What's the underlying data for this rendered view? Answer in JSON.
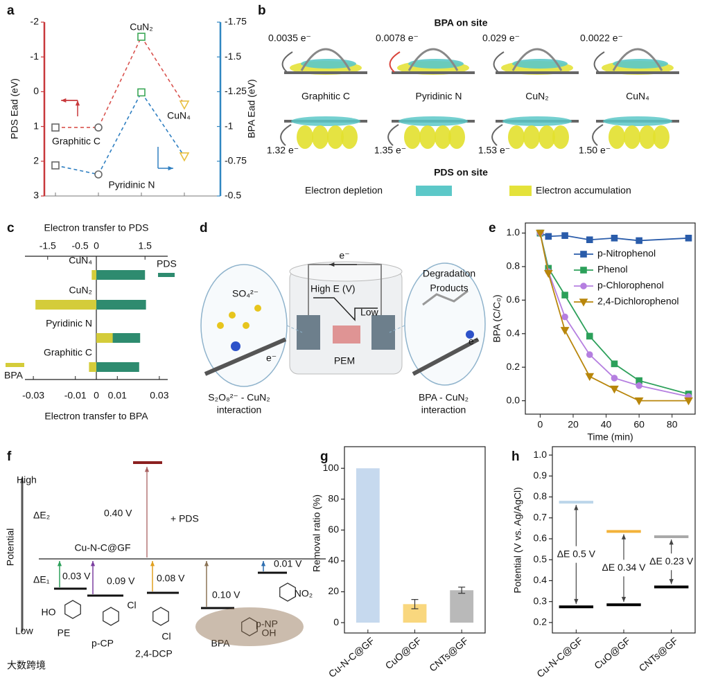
{
  "chart_data": [
    {
      "panel": "a",
      "type": "dual",
      "categories": [
        "Graphitic C",
        "Pyridinic N",
        "CuN₂",
        "CuN₄"
      ],
      "ylabel": "PDS Ead (eV)",
      "y2label": "BPA Ead (eV)",
      "ylim": [
        -2,
        3
      ],
      "yticks": [
        -2,
        -1,
        0,
        1,
        2,
        3
      ],
      "y_inverted": true,
      "y_color": "#c8383b",
      "y2lim": [
        -1.75,
        -0.5
      ],
      "y2ticks": [
        -1.75,
        -1.5,
        -1.25,
        -1,
        -0.75,
        -0.5
      ],
      "y2_inverted": true,
      "y2_color": "#2f86c1",
      "markers": [
        "square",
        "circle",
        "square",
        "triangle"
      ],
      "marker_colors": [
        "#666666",
        "#666666",
        "#3aa655",
        "#e8c040"
      ],
      "series": [
        {
          "color": "#d9534f",
          "values": [
            1.03,
            1.03,
            -1.58,
            0.37
          ]
        },
        {
          "color": "#2f7fc1",
          "axis": "y2",
          "values": [
            -0.72,
            -0.655,
            -1.245,
            -0.785
          ]
        }
      ]
    },
    {
      "panel": "c",
      "type": "barh",
      "categories": [
        "CuN₄",
        "CuN₂",
        "Pyridinic N",
        "Graphitic C"
      ],
      "x2label": "Electron transfer to PDS",
      "xlabel": "Electron transfer to BPA",
      "x2lim": [
        -2.2,
        2.2
      ],
      "x2ticks": [
        -1.5,
        -0.5,
        0,
        1.5
      ],
      "xlim": [
        -0.034,
        0.034
      ],
      "xticks": [
        -0.03,
        -0.01,
        0,
        0.01,
        0.03
      ],
      "series": [
        {
          "name": "PDS",
          "axis": "x2",
          "color": "#2e8b6f",
          "values": [
            1.5,
            1.53,
            1.35,
            1.32
          ]
        },
        {
          "name": "BPA",
          "color": "#d4cc3a",
          "values": [
            -0.0022,
            -0.029,
            0.0078,
            -0.0035
          ]
        }
      ]
    },
    {
      "panel": "e",
      "type": "line",
      "xlabel": "Time (min)",
      "ylabel": "BPA (C/C₀)",
      "x": [
        0,
        5,
        15,
        30,
        45,
        60,
        90
      ],
      "xlim": [
        -9,
        94
      ],
      "xticks": [
        0,
        20,
        40,
        60,
        80
      ],
      "ylim": [
        -0.08,
        1.06
      ],
      "yticks": [
        {
          "value": 0,
          "label": "0.0"
        },
        0.2,
        0.4,
        0.6,
        0.8,
        {
          "value": 1,
          "label": "1.0"
        }
      ],
      "series": [
        {
          "name": "p-Nitrophenol",
          "color": "#2a5caa",
          "marker": "square",
          "values": [
            1.0,
            0.98,
            0.985,
            0.96,
            0.97,
            0.955,
            0.97
          ]
        },
        {
          "name": "Phenol",
          "color": "#2ca05a",
          "marker": "square",
          "values": [
            1.0,
            0.79,
            0.63,
            0.385,
            0.22,
            0.12,
            0.04
          ]
        },
        {
          "name": "p-Chlorophenol",
          "color": "#b57fe0",
          "marker": "circle",
          "values": [
            1.0,
            0.77,
            0.5,
            0.275,
            0.135,
            0.09,
            0.025
          ]
        },
        {
          "name": "2,4-Dichlorophenol",
          "color": "#b8860b",
          "marker": "triangle",
          "values": [
            1.0,
            0.76,
            0.42,
            0.145,
            0.07,
            0.0,
            0.0
          ]
        }
      ]
    },
    {
      "panel": "g",
      "type": "bar",
      "ylabel": "Removal ratio (%)",
      "categories": [
        "Cu-N-C@GF",
        "CuO@GF",
        "CNTs@GF"
      ],
      "values": [
        100,
        12,
        21
      ],
      "errors": [
        0,
        3,
        2
      ],
      "colors": [
        "#c6d9ee",
        "#f9d77e",
        "#b9b9b9"
      ],
      "ylim": [
        -6.7,
        114
      ],
      "yticks": [
        0,
        20,
        40,
        60,
        80,
        100
      ]
    },
    {
      "panel": "h",
      "type": "level",
      "ylabel": "Potential (V vs. Ag/AgCl)",
      "categories": [
        "Cu-N-C@GF",
        "CuO@GF",
        "CNTs@GF"
      ],
      "upper": [
        0.775,
        0.635,
        0.61
      ],
      "lower": [
        0.275,
        0.285,
        0.37
      ],
      "upper_colors": [
        "#bcd6ea",
        "#f3b23a",
        "#a9a9a9"
      ],
      "lower_color": "#000000",
      "annotations": [
        "ΔE 0.5 V",
        "ΔE 0.34 V",
        "ΔE 0.23 V"
      ],
      "ylim": [
        0.15,
        1.04
      ],
      "yticks": [
        0.2,
        0.3,
        0.4,
        0.5,
        0.6,
        0.7,
        0.8,
        0.9,
        {
          "value": 1,
          "label": "1.0"
        }
      ]
    }
  ],
  "diagram_b": {
    "panel": "b",
    "top_title": "BPA on site",
    "bottom_title": "PDS on site",
    "sites": [
      "Graphitic C",
      "Pyridinic N",
      "CuN₂",
      "CuN₄"
    ],
    "bpa_transfer": [
      "0.0035 e⁻",
      "0.0078 e⁻",
      "0.029 e⁻",
      "0.0022 e⁻"
    ],
    "pds_transfer": [
      "1.32 e⁻",
      "1.35 e⁻",
      "1.53 e⁻",
      "1.50 e⁻"
    ],
    "legend": [
      "Electron depletion",
      "Electron accumulation"
    ]
  },
  "diagram_d": {
    "panel": "d",
    "electron": "e⁻",
    "high": "High E (V)",
    "low": "Low",
    "products": [
      "Degradation",
      "Products"
    ],
    "so4": "SO₄²⁻",
    "pem": "PEM",
    "e_left": "e⁻",
    "e_right": "e⁻",
    "left_caption": [
      "S₂O₈²⁻ - CuN₂",
      "interaction"
    ],
    "right_caption": [
      "BPA - CuN₂",
      "interaction"
    ]
  },
  "diagram_f": {
    "panel": "f",
    "high": "High",
    "low": "Low",
    "axis": "Potential",
    "de2": "ΔE₂",
    "de1": "ΔE₁",
    "baseline": "Cu-N-C@GF",
    "pds_gap": "0.40 V",
    "pds": "+ PDS",
    "gaps": [
      {
        "text": "0.03 V",
        "color": "#2ca05a"
      },
      {
        "text": "0.09 V",
        "color": "#7b3fa0"
      },
      {
        "text": "0.08 V",
        "color": "#e0a020"
      },
      {
        "text": "0.10 V",
        "color": "#8b7355"
      },
      {
        "text": "0.01 V",
        "color": "#2f6fb0"
      }
    ],
    "molecules": [
      "PE",
      "p-CP",
      "2,4-DCP",
      "BPA",
      "p-NP"
    ],
    "groups": [
      "HO",
      "Cl",
      "Cl",
      "OH",
      "NO₂"
    ]
  },
  "watermark": "大数跨境"
}
